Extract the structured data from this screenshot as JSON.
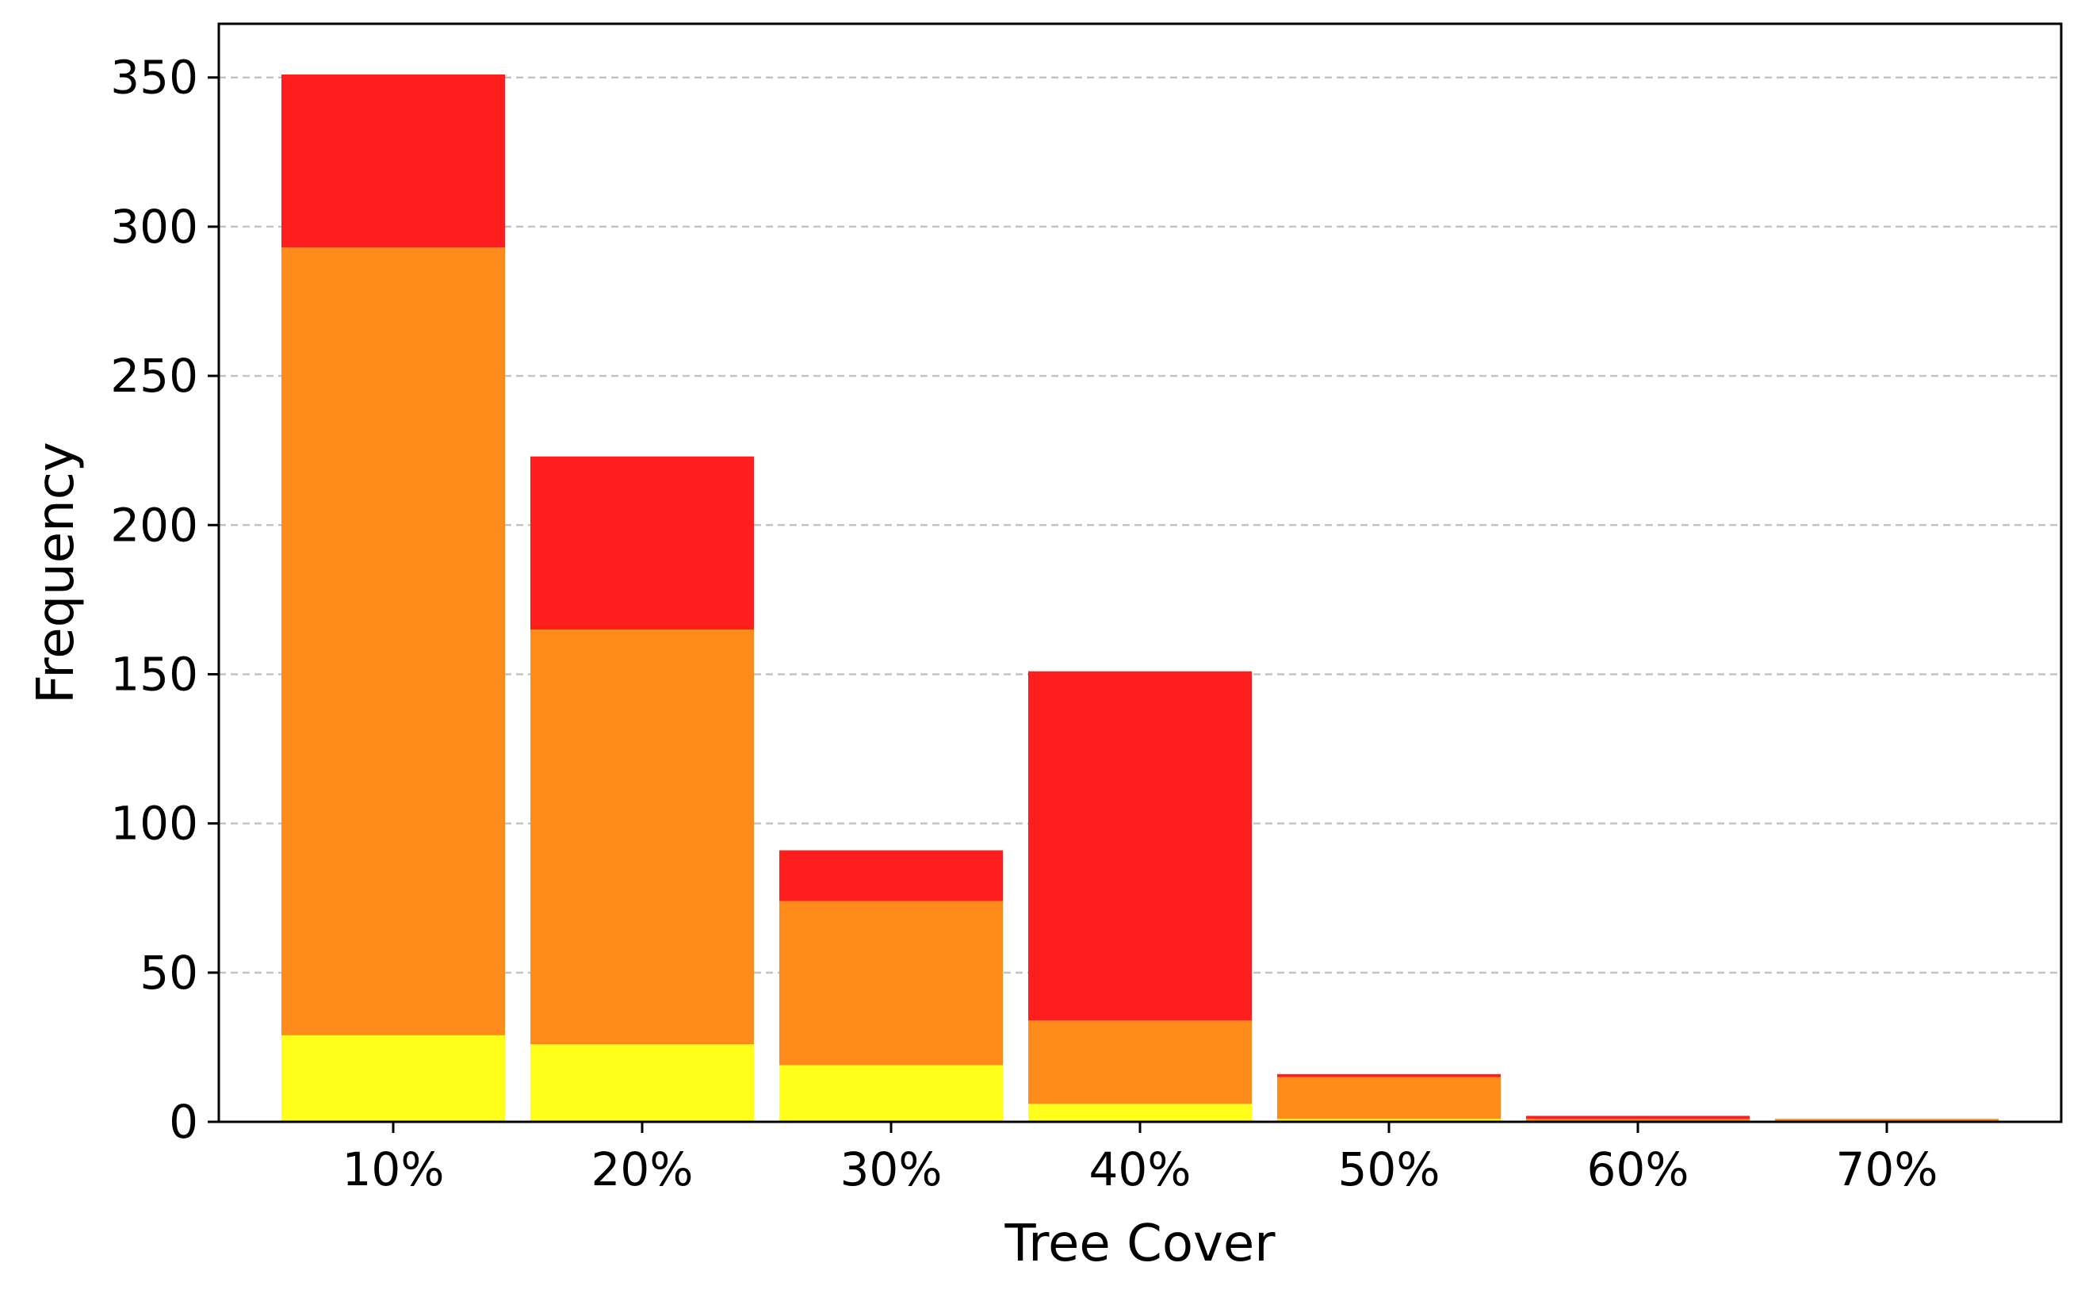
{
  "chart_data": {
    "type": "bar",
    "stacked": true,
    "title": "",
    "xlabel": "Tree Cover",
    "ylabel": "Frequency",
    "categories": [
      "10%",
      "20%",
      "30%",
      "40%",
      "50%",
      "60%",
      "70%"
    ],
    "series": [
      {
        "color": "#FFFF1A",
        "values": [
          29,
          26,
          19,
          6,
          1,
          0,
          0
        ]
      },
      {
        "color": "#FF8C1A",
        "values": [
          264,
          139,
          55,
          28,
          14,
          1,
          1
        ]
      },
      {
        "color": "#FF1E1E",
        "values": [
          58,
          58,
          17,
          117,
          1,
          1,
          0
        ]
      }
    ],
    "ylim": [
      0,
      368
    ],
    "yticks": [
      0,
      50,
      100,
      150,
      200,
      250,
      300,
      350
    ],
    "grid": "y-dashed",
    "legend": "none"
  }
}
